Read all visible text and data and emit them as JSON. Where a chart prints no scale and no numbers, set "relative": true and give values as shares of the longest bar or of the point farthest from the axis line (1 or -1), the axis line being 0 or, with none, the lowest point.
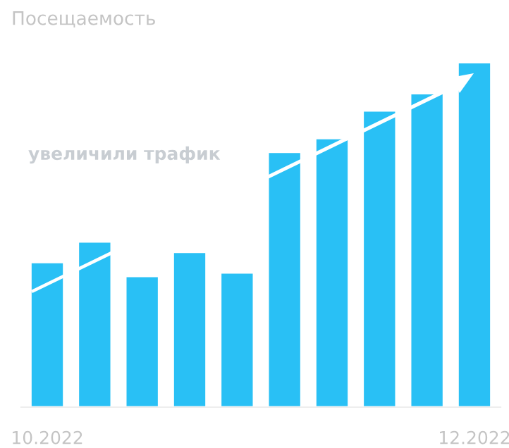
{
  "chart_data": {
    "type": "bar",
    "title": "Посещаемость",
    "relative": true,
    "categories": [
      "10.2022",
      null,
      null,
      null,
      null,
      null,
      null,
      null,
      null,
      "12.2022"
    ],
    "values": [
      0.42,
      0.48,
      0.38,
      0.45,
      0.39,
      0.74,
      0.78,
      0.86,
      0.91,
      1.0
    ],
    "color": "#29c0f5",
    "annotations": [
      "увеличили трафик"
    ],
    "grid": false,
    "legend": false
  }
}
